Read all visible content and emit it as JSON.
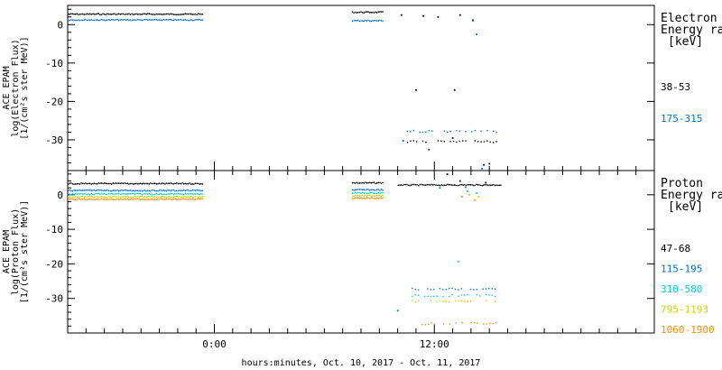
{
  "chart_data": {
    "type": "scatter",
    "xlabel": "hours:minutes, Oct. 10, 2017 - Oct. 11, 2017",
    "x_ticks": [
      "0:00",
      "12:00"
    ],
    "x_range_hours": [
      -8,
      24
    ],
    "panels": [
      {
        "ylabel_lines": [
          "ACE EPAM",
          "log(Electron Flux)",
          "[1/(cm²s ster MeV)]"
        ],
        "ylim": [
          -38,
          5
        ],
        "y_ticks": [
          0,
          -10,
          -20,
          -30
        ],
        "legend_title_lines": [
          "Electron",
          "Energy ran",
          "[keV]"
        ],
        "series": [
          {
            "name": "38-53",
            "color": "#000000",
            "segments": [
              {
                "x": [
                  -8.0,
                  -0.6
                ],
                "y": 2.7
              },
              {
                "x": [
                  7.5,
                  9.2
                ],
                "y": 3.2
              },
              {
                "x": [
                  10.5,
                  15.4
                ],
                "y": -30.5
              }
            ],
            "points": [
              [
                11.7,
                -32.5
              ],
              [
                13.0,
                -29.5
              ],
              [
                14.7,
                -36.5
              ],
              [
                11.0,
                -17.0
              ],
              [
                13.1,
                -17.0
              ],
              [
                10.2,
                2.5
              ],
              [
                11.4,
                2.3
              ],
              [
                12.2,
                2.0
              ],
              [
                13.4,
                2.5
              ],
              [
                14.1,
                1.2
              ],
              [
                15.0,
                -36.2
              ]
            ]
          },
          {
            "name": "175-315",
            "color": "#0070d0",
            "segments": [
              {
                "x": [
                  -8.0,
                  -0.6
                ],
                "y": 1.2
              },
              {
                "x": [
                  7.5,
                  9.2
                ],
                "y": 1.0
              },
              {
                "x": [
                  10.5,
                  15.4
                ],
                "y": -27.8
              }
            ],
            "points": [
              [
                10.3,
                -30.2
              ],
              [
                14.3,
                -2.5
              ],
              [
                14.6,
                -37.5
              ],
              [
                14.1,
                1.0
              ]
            ]
          }
        ]
      },
      {
        "ylabel_lines": [
          "ACE EPAM",
          "log(Proton Flux)",
          "[1/(cm²s ster MeV)]"
        ],
        "ylim": [
          -40,
          7
        ],
        "y_ticks": [
          0,
          -10,
          -20,
          -30
        ],
        "legend_title_lines": [
          "Proton",
          "Energy ran",
          "[keV]"
        ],
        "series": [
          {
            "name": "47-68",
            "color": "#000000",
            "segments": [
              {
                "x": [
                  -8.0,
                  -0.6
                ],
                "y": 3.2
              },
              {
                "x": [
                  7.5,
                  9.2
                ],
                "y": 3.4
              },
              {
                "x": [
                  10.0,
                  15.6
                ],
                "y": 2.8
              }
            ],
            "points": [
              [
                12.7,
                6.0
              ],
              [
                13.4,
                4.0
              ],
              [
                14.8,
                3.5
              ]
            ]
          },
          {
            "name": "115-195",
            "color": "#0070d0",
            "segments": [
              {
                "x": [
                  -8.0,
                  -0.6
                ],
                "y": 1.2
              },
              {
                "x": [
                  7.5,
                  9.2
                ],
                "y": 1.4
              },
              {
                "x": [
                  10.6,
                  15.4
                ],
                "y": -27.3
              }
            ],
            "points": [
              [
                10.0,
                -33.5
              ],
              [
                12.3,
                2.0
              ],
              [
                13.7,
                2.2
              ]
            ]
          },
          {
            "name": "310-580",
            "color": "#00d0d0",
            "segments": [
              {
                "x": [
                  -8.0,
                  -0.6
                ],
                "y": 0.2
              },
              {
                "x": [
                  7.5,
                  9.2
                ],
                "y": 0.5
              },
              {
                "x": [
                  10.6,
                  15.4
                ],
                "y": -29.2
              }
            ],
            "points": [
              [
                13.3,
                -19.3
              ],
              [
                13.8,
                1.0
              ],
              [
                14.3,
                0.5
              ]
            ]
          },
          {
            "name": "795-1193",
            "color": "#d0d000",
            "segments": [
              {
                "x": [
                  -8.0,
                  -0.6
                ],
                "y": -0.6
              },
              {
                "x": [
                  7.5,
                  9.2
                ],
                "y": -0.3
              },
              {
                "x": [
                  10.6,
                  15.4
                ],
                "y": -30.8
              }
            ],
            "points": [
              [
                13.9,
                0.0
              ],
              [
                14.4,
                -0.5
              ]
            ]
          },
          {
            "name": "1060-1900",
            "color": "#ff8c00",
            "segments": [
              {
                "x": [
                  -8.0,
                  -0.6
                ],
                "y": -1.3
              },
              {
                "x": [
                  7.5,
                  9.2
                ],
                "y": -1.0
              },
              {
                "x": [
                  10.8,
                  15.4
                ],
                "y": -37.3
              }
            ],
            "points": [
              [
                13.5,
                -0.5
              ],
              [
                14.2,
                -1.5
              ]
            ]
          }
        ]
      }
    ]
  }
}
